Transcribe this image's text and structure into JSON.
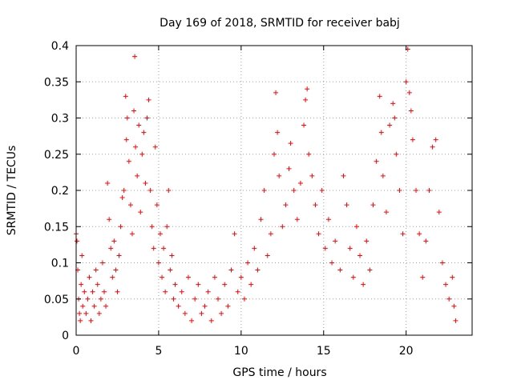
{
  "chart_data": {
    "type": "scatter",
    "title": "Day 169 of 2018, SRMTID for receiver babj",
    "xlabel": "GPS time / hours",
    "ylabel": "SRMTID / TECUs",
    "xlim": [
      0,
      24
    ],
    "ylim": [
      0,
      0.4
    ],
    "x_ticks": [
      "0",
      "5",
      "10",
      "15",
      "20"
    ],
    "y_ticks": [
      "0",
      "0.05",
      "0.1",
      "0.15",
      "0.2",
      "0.25",
      "0.3",
      "0.35",
      "0.4"
    ],
    "grid": true,
    "marker": "plus",
    "colors": {
      "points": "#ff0000",
      "grid": "#a0a0a0",
      "axis": "#000000"
    },
    "series": [
      {
        "points": [
          [
            0.0,
            0.14
          ],
          [
            0.05,
            0.13
          ],
          [
            0.1,
            0.09
          ],
          [
            0.15,
            0.05
          ],
          [
            0.2,
            0.03
          ],
          [
            0.25,
            0.02
          ],
          [
            0.3,
            0.07
          ],
          [
            0.35,
            0.11
          ],
          [
            0.4,
            0.04
          ],
          [
            0.5,
            0.06
          ],
          [
            0.6,
            0.03
          ],
          [
            0.7,
            0.05
          ],
          [
            0.8,
            0.08
          ],
          [
            0.9,
            0.02
          ],
          [
            1.0,
            0.06
          ],
          [
            1.1,
            0.04
          ],
          [
            1.2,
            0.09
          ],
          [
            1.3,
            0.07
          ],
          [
            1.4,
            0.03
          ],
          [
            1.5,
            0.05
          ],
          [
            1.6,
            0.1
          ],
          [
            1.7,
            0.06
          ],
          [
            1.8,
            0.04
          ],
          [
            1.9,
            0.21
          ],
          [
            2.0,
            0.16
          ],
          [
            2.1,
            0.12
          ],
          [
            2.2,
            0.08
          ],
          [
            2.3,
            0.13
          ],
          [
            2.4,
            0.09
          ],
          [
            2.5,
            0.06
          ],
          [
            2.6,
            0.11
          ],
          [
            2.7,
            0.15
          ],
          [
            2.8,
            0.19
          ],
          [
            2.9,
            0.2
          ],
          [
            3.0,
            0.33
          ],
          [
            3.05,
            0.27
          ],
          [
            3.1,
            0.3
          ],
          [
            3.2,
            0.24
          ],
          [
            3.3,
            0.18
          ],
          [
            3.4,
            0.14
          ],
          [
            3.5,
            0.31
          ],
          [
            3.55,
            0.385
          ],
          [
            3.6,
            0.26
          ],
          [
            3.7,
            0.22
          ],
          [
            3.8,
            0.29
          ],
          [
            3.9,
            0.17
          ],
          [
            4.0,
            0.25
          ],
          [
            4.1,
            0.28
          ],
          [
            4.2,
            0.21
          ],
          [
            4.3,
            0.3
          ],
          [
            4.4,
            0.325
          ],
          [
            4.5,
            0.2
          ],
          [
            4.6,
            0.15
          ],
          [
            4.7,
            0.12
          ],
          [
            4.8,
            0.26
          ],
          [
            4.9,
            0.18
          ],
          [
            5.0,
            0.1
          ],
          [
            5.1,
            0.14
          ],
          [
            5.2,
            0.08
          ],
          [
            5.3,
            0.12
          ],
          [
            5.4,
            0.06
          ],
          [
            5.5,
            0.15
          ],
          [
            5.6,
            0.2
          ],
          [
            5.7,
            0.09
          ],
          [
            5.8,
            0.11
          ],
          [
            5.9,
            0.05
          ],
          [
            6.0,
            0.07
          ],
          [
            6.2,
            0.04
          ],
          [
            6.4,
            0.06
          ],
          [
            6.6,
            0.03
          ],
          [
            6.8,
            0.08
          ],
          [
            7.0,
            0.02
          ],
          [
            7.2,
            0.05
          ],
          [
            7.4,
            0.07
          ],
          [
            7.6,
            0.03
          ],
          [
            7.8,
            0.04
          ],
          [
            8.0,
            0.06
          ],
          [
            8.2,
            0.02
          ],
          [
            8.4,
            0.08
          ],
          [
            8.6,
            0.05
          ],
          [
            8.8,
            0.03
          ],
          [
            9.0,
            0.07
          ],
          [
            9.2,
            0.04
          ],
          [
            9.4,
            0.09
          ],
          [
            9.6,
            0.14
          ],
          [
            9.8,
            0.06
          ],
          [
            10.0,
            0.08
          ],
          [
            10.2,
            0.05
          ],
          [
            10.4,
            0.1
          ],
          [
            10.6,
            0.07
          ],
          [
            10.8,
            0.12
          ],
          [
            11.0,
            0.09
          ],
          [
            11.2,
            0.16
          ],
          [
            11.4,
            0.2
          ],
          [
            11.6,
            0.11
          ],
          [
            11.8,
            0.14
          ],
          [
            12.0,
            0.25
          ],
          [
            12.1,
            0.335
          ],
          [
            12.2,
            0.28
          ],
          [
            12.3,
            0.22
          ],
          [
            12.5,
            0.15
          ],
          [
            12.7,
            0.18
          ],
          [
            12.9,
            0.23
          ],
          [
            13.0,
            0.265
          ],
          [
            13.2,
            0.2
          ],
          [
            13.4,
            0.16
          ],
          [
            13.6,
            0.21
          ],
          [
            13.8,
            0.29
          ],
          [
            13.9,
            0.325
          ],
          [
            14.0,
            0.34
          ],
          [
            14.1,
            0.25
          ],
          [
            14.3,
            0.22
          ],
          [
            14.5,
            0.18
          ],
          [
            14.7,
            0.14
          ],
          [
            14.9,
            0.2
          ],
          [
            15.1,
            0.12
          ],
          [
            15.3,
            0.16
          ],
          [
            15.5,
            0.1
          ],
          [
            15.7,
            0.13
          ],
          [
            16.0,
            0.09
          ],
          [
            16.2,
            0.22
          ],
          [
            16.4,
            0.18
          ],
          [
            16.6,
            0.12
          ],
          [
            16.8,
            0.08
          ],
          [
            17.0,
            0.15
          ],
          [
            17.2,
            0.11
          ],
          [
            17.4,
            0.07
          ],
          [
            17.6,
            0.13
          ],
          [
            17.8,
            0.09
          ],
          [
            18.0,
            0.18
          ],
          [
            18.2,
            0.24
          ],
          [
            18.4,
            0.33
          ],
          [
            18.5,
            0.28
          ],
          [
            18.6,
            0.22
          ],
          [
            18.8,
            0.17
          ],
          [
            19.0,
            0.29
          ],
          [
            19.2,
            0.32
          ],
          [
            19.3,
            0.3
          ],
          [
            19.4,
            0.25
          ],
          [
            19.6,
            0.2
          ],
          [
            19.8,
            0.14
          ],
          [
            20.0,
            0.35
          ],
          [
            20.1,
            0.395
          ],
          [
            20.2,
            0.335
          ],
          [
            20.3,
            0.31
          ],
          [
            20.4,
            0.27
          ],
          [
            20.6,
            0.2
          ],
          [
            20.8,
            0.14
          ],
          [
            21.0,
            0.08
          ],
          [
            21.2,
            0.13
          ],
          [
            21.4,
            0.2
          ],
          [
            21.6,
            0.26
          ],
          [
            21.8,
            0.27
          ],
          [
            22.0,
            0.17
          ],
          [
            22.2,
            0.1
          ],
          [
            22.4,
            0.07
          ],
          [
            22.6,
            0.05
          ],
          [
            22.8,
            0.08
          ],
          [
            22.9,
            0.04
          ],
          [
            23.0,
            0.02
          ]
        ]
      }
    ]
  }
}
